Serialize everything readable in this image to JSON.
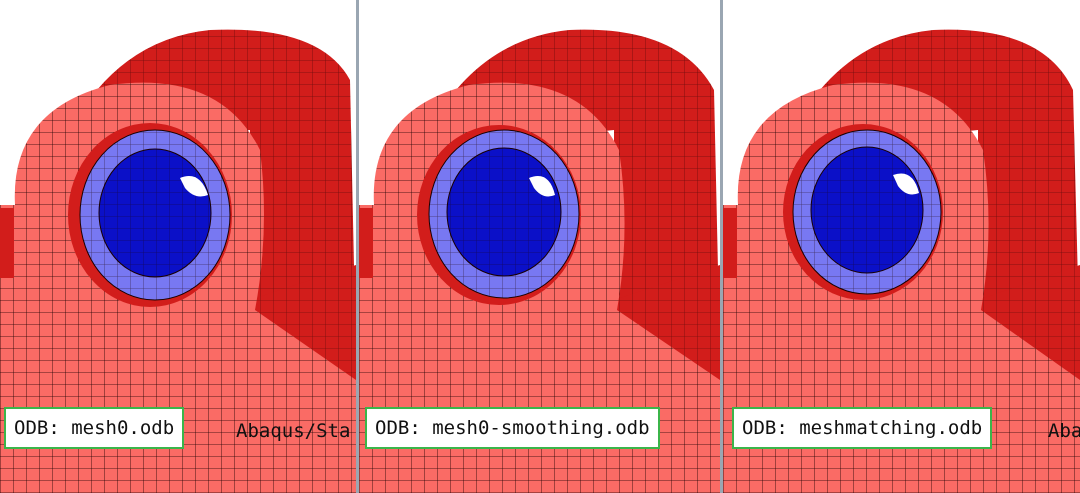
{
  "viewports": [
    {
      "odb_label": "ODB: mesh0.odb",
      "trailing_text": "Abaqus/Sta"
    },
    {
      "odb_label": "ODB: mesh0-smoothing.odb",
      "trailing_text": ""
    },
    {
      "odb_label": "ODB: meshmatching.odb",
      "trailing_text": "Aba"
    }
  ],
  "colors": {
    "body_front": "#fa6b65",
    "body_side": "#d21d1b",
    "ring_outer": "#7878f2",
    "bore_inner": "#0b10c8",
    "mesh_line": "#1a0000",
    "odb_border": "#3bb54a",
    "divider": "#9aa6b2"
  }
}
